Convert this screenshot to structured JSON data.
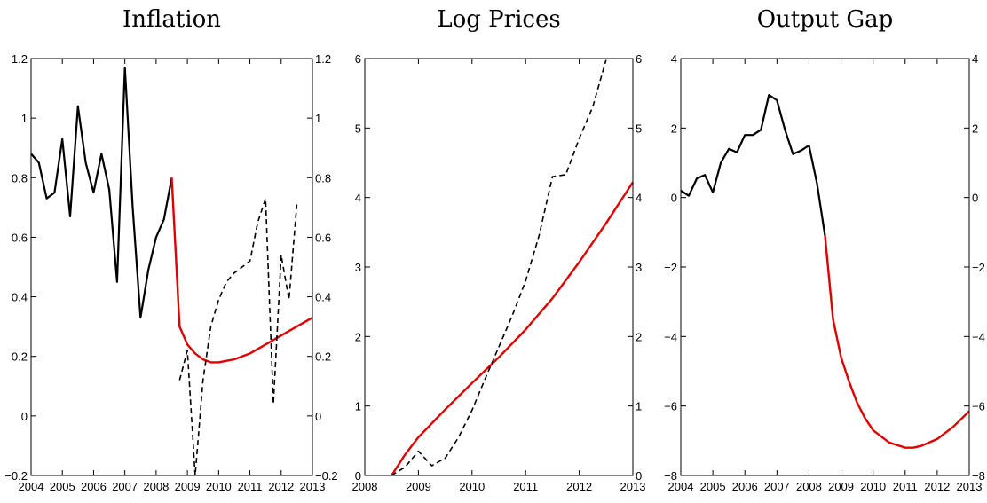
{
  "chart_data": [
    {
      "type": "line",
      "title": "Inflation",
      "xlim": [
        2004,
        2013
      ],
      "ylim": [
        -0.2,
        1.2
      ],
      "xticks": [
        2004,
        2005,
        2006,
        2007,
        2008,
        2009,
        2010,
        2011,
        2012,
        2013
      ],
      "yticks": [
        -0.2,
        0,
        0.2,
        0.4,
        0.6,
        0.8,
        1,
        1.2
      ],
      "ytick_labels": [
        "−0.2",
        "0",
        "0.2",
        "0.4",
        "0.6",
        "0.8",
        "1",
        "1.2"
      ],
      "right_axis": true,
      "series": [
        {
          "style": "solid",
          "color": "#000000",
          "x": [
            2004.0,
            2004.25,
            2004.5,
            2004.75,
            2005.0,
            2005.25,
            2005.5,
            2005.75,
            2006.0,
            2006.25,
            2006.5,
            2006.75,
            2007.0,
            2007.25,
            2007.5,
            2007.75,
            2008.0,
            2008.25,
            2008.5
          ],
          "y": [
            0.88,
            0.85,
            0.73,
            0.75,
            0.93,
            0.67,
            1.04,
            0.85,
            0.75,
            0.88,
            0.76,
            0.45,
            1.17,
            0.7,
            0.33,
            0.49,
            0.6,
            0.66,
            0.8
          ]
        },
        {
          "style": "solid",
          "color": "#e00000",
          "x": [
            2008.5,
            2008.75,
            2009.0,
            2009.25,
            2009.5,
            2009.75,
            2010.0,
            2010.5,
            2011.0,
            2011.5,
            2012.0,
            2012.5,
            2013.0
          ],
          "y": [
            0.8,
            0.3,
            0.24,
            0.21,
            0.19,
            0.18,
            0.18,
            0.19,
            0.21,
            0.24,
            0.27,
            0.3,
            0.33
          ]
        },
        {
          "style": "dashed",
          "color": "#000000",
          "x": [
            2008.75,
            2009.0,
            2009.25,
            2009.5,
            2009.75,
            2010.0,
            2010.25,
            2010.5,
            2010.75,
            2011.0,
            2011.25,
            2011.5,
            2011.75,
            2012.0,
            2012.25,
            2012.5
          ],
          "y": [
            0.12,
            0.22,
            -0.2,
            0.12,
            0.3,
            0.39,
            0.45,
            0.48,
            0.5,
            0.52,
            0.65,
            0.73,
            0.04,
            0.54,
            0.39,
            0.71
          ]
        }
      ]
    },
    {
      "type": "line",
      "title": "Log Prices",
      "xlim": [
        2008,
        2013
      ],
      "ylim": [
        0,
        6
      ],
      "xticks": [
        2008,
        2009,
        2010,
        2011,
        2012,
        2013
      ],
      "yticks": [
        0,
        1,
        2,
        3,
        4,
        5,
        6
      ],
      "ytick_labels": [
        "0",
        "1",
        "2",
        "3",
        "4",
        "5",
        "6"
      ],
      "right_axis": true,
      "series": [
        {
          "style": "solid",
          "color": "#e00000",
          "x": [
            2008.5,
            2008.75,
            2009.0,
            2009.5,
            2010.0,
            2010.5,
            2011.0,
            2011.5,
            2012.0,
            2012.5,
            2013.0
          ],
          "y": [
            0.0,
            0.3,
            0.55,
            0.95,
            1.33,
            1.7,
            2.1,
            2.55,
            3.07,
            3.63,
            4.22
          ]
        },
        {
          "style": "dashed",
          "color": "#000000",
          "x": [
            2008.5,
            2008.75,
            2009.0,
            2009.25,
            2009.5,
            2009.75,
            2010.0,
            2010.25,
            2010.5,
            2010.75,
            2011.0,
            2011.25,
            2011.5,
            2011.75,
            2012.0,
            2012.25,
            2012.5
          ],
          "y": [
            0.0,
            0.12,
            0.35,
            0.14,
            0.25,
            0.55,
            0.94,
            1.4,
            1.85,
            2.3,
            2.8,
            3.45,
            4.3,
            4.33,
            4.85,
            5.3,
            5.98
          ]
        }
      ]
    },
    {
      "type": "line",
      "title": "Output Gap",
      "xlim": [
        2004,
        2013
      ],
      "ylim": [
        -8,
        4
      ],
      "xticks": [
        2004,
        2005,
        2006,
        2007,
        2008,
        2009,
        2010,
        2011,
        2012,
        2013
      ],
      "yticks": [
        -8,
        -6,
        -4,
        -2,
        0,
        2,
        4
      ],
      "ytick_labels": [
        "−8",
        "−6",
        "−4",
        "−2",
        "0",
        "2",
        "4"
      ],
      "right_axis": true,
      "series": [
        {
          "style": "solid",
          "color": "#000000",
          "x": [
            2004.0,
            2004.25,
            2004.5,
            2004.75,
            2005.0,
            2005.25,
            2005.5,
            2005.75,
            2006.0,
            2006.25,
            2006.5,
            2006.75,
            2007.0,
            2007.25,
            2007.5,
            2007.75,
            2008.0,
            2008.25,
            2008.5
          ],
          "y": [
            0.2,
            0.05,
            0.55,
            0.65,
            0.15,
            1.0,
            1.4,
            1.3,
            1.8,
            1.8,
            1.95,
            2.95,
            2.8,
            1.95,
            1.25,
            1.35,
            1.5,
            0.4,
            -1.1
          ]
        },
        {
          "style": "solid",
          "color": "#e00000",
          "x": [
            2008.5,
            2008.75,
            2009.0,
            2009.25,
            2009.5,
            2009.75,
            2010.0,
            2010.5,
            2011.0,
            2011.25,
            2011.5,
            2012.0,
            2012.5,
            2013.0
          ],
          "y": [
            -1.1,
            -3.5,
            -4.6,
            -5.3,
            -5.9,
            -6.35,
            -6.7,
            -7.05,
            -7.2,
            -7.2,
            -7.15,
            -6.95,
            -6.6,
            -6.15
          ]
        }
      ]
    }
  ]
}
